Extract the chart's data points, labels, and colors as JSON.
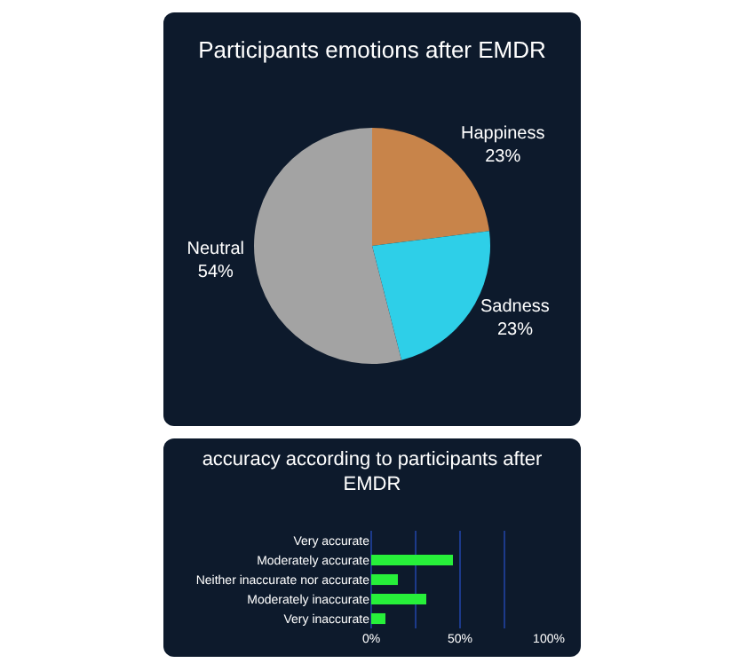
{
  "chart_data": [
    {
      "type": "pie",
      "title": "Participants emotions after EMDR",
      "categories": [
        "Happiness",
        "Sadness",
        "Neutral"
      ],
      "values": [
        23,
        23,
        54
      ],
      "value_labels": [
        "23%",
        "23%",
        "54%"
      ],
      "colors": [
        "#c8844a",
        "#2ecfe8",
        "#a3a3a3"
      ]
    },
    {
      "type": "bar",
      "orientation": "horizontal",
      "title": "accuracy according to participants after EMDR",
      "categories": [
        "Very accurate",
        "Moderately accurate",
        "Neither inaccurate nor accurate",
        "Moderately inaccurate",
        "Very inaccurate"
      ],
      "values": [
        0,
        46,
        15,
        31,
        8
      ],
      "color": "#27f03a",
      "xlim": [
        0,
        100
      ],
      "xticks": [
        {
          "value": 0,
          "label": "0%"
        },
        {
          "value": 25,
          "label": null
        },
        {
          "value": 50,
          "label": "50%"
        },
        {
          "value": 75,
          "label": null
        },
        {
          "value": 100,
          "label": "100%"
        }
      ],
      "grid": "x"
    }
  ]
}
